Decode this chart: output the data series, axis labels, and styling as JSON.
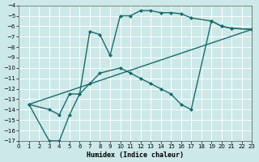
{
  "xlabel": "Humidex (Indice chaleur)",
  "bg_color": "#cce8e8",
  "line_color": "#1a6b6b",
  "grid_color": "#ffffff",
  "xlim": [
    0,
    23
  ],
  "ylim": [
    -4,
    -17
  ],
  "xticks": [
    0,
    1,
    2,
    3,
    4,
    5,
    6,
    7,
    8,
    9,
    10,
    11,
    12,
    13,
    14,
    15,
    16,
    17,
    18,
    19,
    20,
    21,
    22,
    23
  ],
  "yticks": [
    -4,
    -5,
    -6,
    -7,
    -8,
    -9,
    -10,
    -11,
    -12,
    -13,
    -14,
    -15,
    -16,
    -17
  ],
  "curve1_x": [
    1,
    3,
    4,
    5,
    6,
    7,
    8,
    9,
    10,
    11,
    12,
    13,
    14,
    15,
    16,
    17,
    19,
    20,
    21,
    23
  ],
  "curve1_y": [
    -13.5,
    -17,
    -17,
    -14.5,
    -12.5,
    -6.5,
    -6.8,
    -8.8,
    -5.0,
    -5.0,
    -4.5,
    -4.5,
    -4.7,
    -4.7,
    -4.8,
    -5.2,
    -5.5,
    -6.0,
    -6.2,
    -6.3
  ],
  "curve2_x": [
    1,
    3,
    4,
    5,
    6,
    7,
    8,
    10,
    11,
    12,
    13,
    14,
    15,
    16,
    17,
    19,
    20,
    21,
    23
  ],
  "curve2_y": [
    -13.5,
    -14.0,
    -14.5,
    -12.5,
    -12.5,
    -11.5,
    -10.5,
    -10.0,
    -10.5,
    -11.0,
    -11.5,
    -12.0,
    -12.5,
    -13.5,
    -14.0,
    -5.5,
    -6.0,
    -6.2,
    -6.3
  ],
  "curve3_x": [
    1,
    23
  ],
  "curve3_y": [
    -13.5,
    -6.3
  ],
  "marker_style": "D",
  "marker_size": 2.5,
  "linewidth": 1.0
}
